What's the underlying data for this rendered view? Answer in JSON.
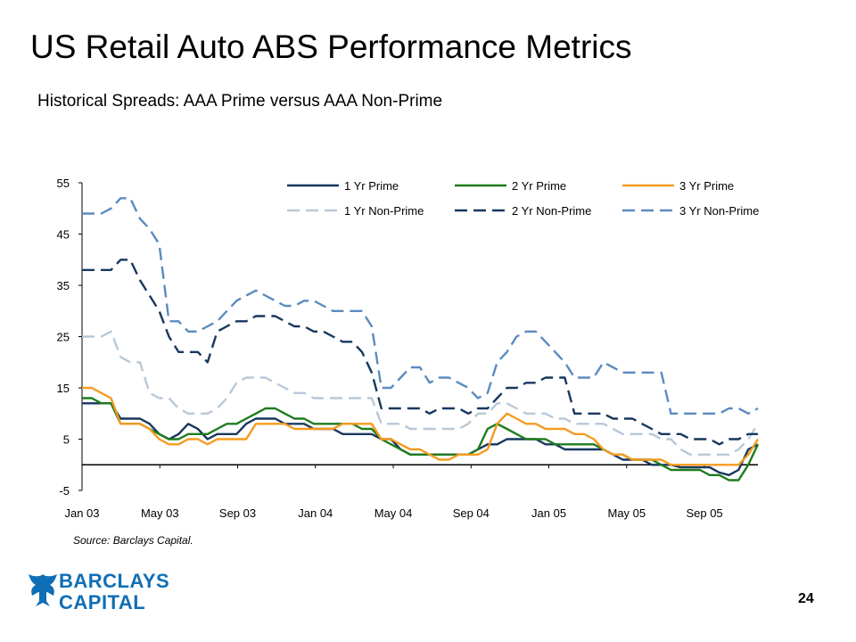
{
  "title": "US Retail Auto ABS Performance Metrics",
  "subtitle": "Historical Spreads: AAA Prime versus AAA Non-Prime",
  "source": "Source: Barclays Capital.",
  "page_number": "24",
  "logo": {
    "line1": "BARCLAYS",
    "line2": "CAPITAL",
    "color": "#0f6eb6"
  },
  "chart_data": {
    "type": "line",
    "title": "",
    "xlabel": "",
    "ylabel": "",
    "ylim": [
      -5,
      55
    ],
    "yticks": [
      -5,
      5,
      15,
      25,
      35,
      45,
      55
    ],
    "ytick_labels": [
      "-5",
      "5",
      "15",
      "25",
      "35",
      "45",
      "55"
    ],
    "x_tick_labels": [
      "Jan 03",
      "May 03",
      "Sep 03",
      "Jan 04",
      "May 04",
      "Sep 04",
      "Jan 05",
      "May 05",
      "Sep 05"
    ],
    "x": [
      0,
      2,
      4,
      6,
      8,
      10,
      12,
      14,
      16,
      18,
      20,
      22,
      24,
      26,
      28,
      30,
      32,
      34,
      36,
      38,
      40,
      42,
      44,
      46,
      48,
      50,
      52,
      54,
      56,
      58,
      60,
      62,
      64,
      66,
      68,
      70,
      72,
      74,
      76,
      78,
      80,
      82,
      84,
      86,
      88,
      90,
      92,
      94,
      96,
      98,
      100,
      102,
      104,
      106,
      108,
      110,
      112,
      114,
      116,
      118,
      120,
      122,
      124,
      126,
      128,
      130,
      132,
      134,
      136,
      138,
      140
    ],
    "x_unit": "weeks since Jan 03",
    "grid": false,
    "legend_position": "top",
    "series": [
      {
        "name": "1 Yr Prime",
        "color": "#17375e",
        "dash": "solid",
        "values": [
          12,
          12,
          12,
          12,
          9,
          9,
          9,
          8,
          6,
          5,
          6,
          8,
          7,
          5,
          6,
          6,
          6,
          8,
          9,
          9,
          9,
          8,
          8,
          8,
          7,
          7,
          7,
          6,
          6,
          6,
          6,
          5,
          5,
          3,
          2,
          2,
          2,
          2,
          2,
          2,
          2,
          3,
          4,
          4,
          5,
          5,
          5,
          5,
          4,
          4,
          3,
          3,
          3,
          3,
          3,
          2,
          1,
          1,
          1,
          0,
          0,
          0,
          -0.5,
          -0.5,
          -0.5,
          -0.5,
          -1.5,
          -2,
          -1,
          3,
          4
        ]
      },
      {
        "name": "2 Yr Prime",
        "color": "#1e7b1e",
        "dash": "solid",
        "values": [
          13,
          13,
          12,
          12,
          8,
          8,
          8,
          7,
          6,
          5,
          5,
          6,
          6,
          6,
          7,
          8,
          8,
          9,
          10,
          11,
          11,
          10,
          9,
          9,
          8,
          8,
          8,
          8,
          8,
          7,
          7,
          5,
          4,
          3,
          2,
          2,
          2,
          2,
          2,
          2,
          2,
          3,
          7,
          8,
          7,
          6,
          5,
          5,
          5,
          4,
          4,
          4,
          4,
          4,
          3,
          2,
          2,
          1,
          1,
          1,
          0,
          -1,
          -1,
          -1,
          -1,
          -2,
          -2,
          -3,
          -3,
          0,
          4
        ]
      },
      {
        "name": "3 Yr Prime",
        "color": "#f59b20",
        "dash": "solid",
        "values": [
          15,
          15,
          14,
          13,
          8,
          8,
          8,
          7,
          5,
          4,
          4,
          5,
          5,
          4,
          5,
          5,
          5,
          5,
          8,
          8,
          8,
          8,
          7,
          7,
          7,
          7,
          7,
          8,
          8,
          8,
          8,
          5,
          5,
          4,
          3,
          3,
          2,
          1,
          1,
          2,
          2,
          2,
          3,
          8,
          10,
          9,
          8,
          8,
          7,
          7,
          7,
          6,
          6,
          5,
          3,
          2,
          2,
          1,
          1,
          1,
          1,
          0,
          0,
          0,
          0,
          0,
          0,
          0,
          0,
          2,
          5
        ]
      },
      {
        "name": "1 Yr Non-Prime",
        "color": "#b8c8d8",
        "dash": "long",
        "values": [
          25,
          25,
          25,
          26,
          21,
          20,
          20,
          14,
          13,
          13,
          11,
          10,
          10,
          10,
          11,
          13,
          16,
          17,
          17,
          17,
          16,
          15,
          14,
          14,
          13,
          13,
          13,
          13,
          13,
          13,
          13,
          8,
          8,
          8,
          7,
          7,
          7,
          7,
          7,
          7,
          8,
          10,
          10,
          12,
          12,
          11,
          10,
          10,
          10,
          9,
          9,
          8,
          8,
          8,
          8,
          7,
          6,
          6,
          6,
          6,
          5,
          5,
          3,
          2,
          2,
          2,
          2,
          2,
          3,
          5,
          8
        ]
      },
      {
        "name": "2 Yr Non-Prime",
        "color": "#17375e",
        "dash": "long",
        "values": [
          38,
          38,
          38,
          38,
          40,
          40,
          36,
          33,
          30,
          25,
          22,
          22,
          22,
          20,
          26,
          27,
          28,
          28,
          29,
          29,
          29,
          28,
          27,
          27,
          26,
          26,
          25,
          24,
          24,
          22,
          18,
          11,
          11,
          11,
          11,
          11,
          10,
          11,
          11,
          11,
          10,
          11,
          11,
          13,
          15,
          15,
          16,
          16,
          17,
          17,
          17,
          10,
          10,
          10,
          10,
          9,
          9,
          9,
          8,
          7,
          6,
          6,
          6,
          5,
          5,
          5,
          4,
          5,
          5,
          6,
          6
        ]
      },
      {
        "name": "3 Yr Non-Prime",
        "color": "#5b8bc0",
        "dash": "long",
        "values": [
          49,
          49,
          49,
          50,
          52,
          52,
          48,
          46,
          43,
          28,
          28,
          26,
          26,
          27,
          28,
          30,
          32,
          33,
          34,
          33,
          32,
          31,
          31,
          32,
          32,
          31,
          30,
          30,
          30,
          30,
          27,
          15,
          15,
          17,
          19,
          19,
          16,
          17,
          17,
          16,
          15,
          13,
          14,
          20,
          22,
          25,
          26,
          26,
          24,
          22,
          20,
          17,
          17,
          17,
          20,
          19,
          18,
          18,
          18,
          18,
          18,
          10,
          10,
          10,
          10,
          10,
          10,
          11,
          11,
          10,
          11
        ]
      }
    ]
  }
}
